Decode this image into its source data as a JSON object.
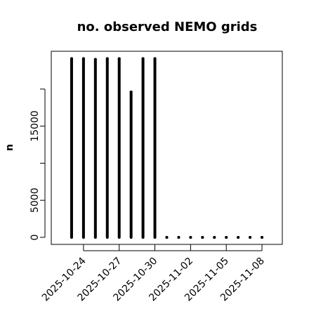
{
  "chart_data": {
    "type": "spike",
    "title": "no. observed NEMO grids",
    "y_label": "n",
    "x": [
      "2025-10-23",
      "2025-10-24",
      "2025-10-25",
      "2025-10-26",
      "2025-10-27",
      "2025-10-28",
      "2025-10-29",
      "2025-10-30",
      "2025-10-31",
      "2025-11-01",
      "2025-11-02",
      "2025-11-03",
      "2025-11-04",
      "2025-11-05",
      "2025-11-06",
      "2025-11-07",
      "2025-11-08"
    ],
    "values": [
      24100,
      24100,
      24000,
      24100,
      24100,
      19600,
      24100,
      24100,
      0,
      0,
      0,
      0,
      0,
      0,
      0,
      0,
      0
    ],
    "color": "#000000",
    "xlim": [
      "2025-10-21T07:00",
      "2025-11-09T17:00"
    ],
    "xticks": [
      "2025-10-24",
      "2025-10-27",
      "2025-10-30",
      "2025-11-02",
      "2025-11-05",
      "2025-11-08"
    ],
    "ylim": [
      -950,
      25100
    ],
    "yticks": [
      0,
      5000,
      {
        "value": 10000,
        "label": null
      },
      15000,
      {
        "value": 20000,
        "label": null
      }
    ]
  }
}
